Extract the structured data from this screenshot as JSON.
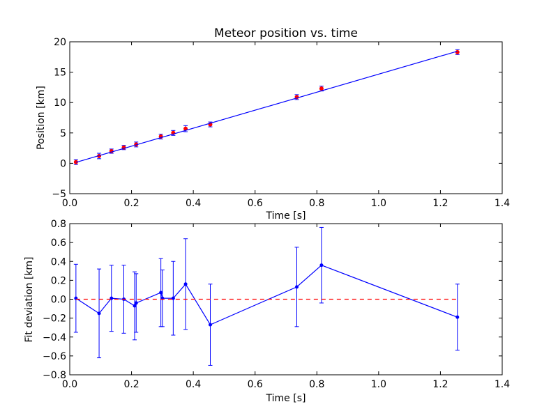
{
  "figure": {
    "background": "#ffffff"
  },
  "chart_data": [
    {
      "type": "scatter",
      "title": "Meteor position vs. time",
      "xlabel": "Time [s]",
      "ylabel": "Position [km]",
      "xlim": [
        0.0,
        1.4
      ],
      "ylim": [
        -5,
        20
      ],
      "xticks": [
        0.0,
        0.2,
        0.4,
        0.6,
        0.8,
        1.0,
        1.2,
        1.4
      ],
      "xtick_labels": [
        "0.0",
        "0.2",
        "0.4",
        "0.6",
        "0.8",
        "1.0",
        "1.2",
        "1.4"
      ],
      "yticks": [
        -5,
        0,
        5,
        10,
        15,
        20
      ],
      "ytick_labels": [
        "−5",
        "0",
        "5",
        "10",
        "15",
        "20"
      ],
      "grid": false,
      "series": [
        {
          "kind": "errorbar-points",
          "color": "#ff0000",
          "errcolor": "#0000ff",
          "x": [
            0.02,
            0.095,
            0.135,
            0.175,
            0.215,
            0.295,
            0.335,
            0.375,
            0.455,
            0.735,
            0.815,
            1.255
          ],
          "y": [
            0.2,
            1.2,
            2.0,
            2.6,
            3.1,
            4.4,
            5.0,
            5.7,
            6.4,
            10.9,
            12.3,
            18.3
          ],
          "yerr": [
            0.4,
            0.45,
            0.35,
            0.35,
            0.4,
            0.4,
            0.4,
            0.5,
            0.4,
            0.4,
            0.4,
            0.4
          ]
        },
        {
          "kind": "line",
          "color": "#0000ff",
          "x": [
            0.02,
            1.255
          ],
          "y": [
            0.15,
            18.45
          ]
        }
      ]
    },
    {
      "type": "line",
      "title": "",
      "xlabel": "Time [s]",
      "ylabel": "Fit deviation [km]",
      "xlim": [
        0.0,
        1.4
      ],
      "ylim": [
        -0.8,
        0.8
      ],
      "xticks": [
        0.0,
        0.2,
        0.4,
        0.6,
        0.8,
        1.0,
        1.2,
        1.4
      ],
      "xtick_labels": [
        "0.0",
        "0.2",
        "0.4",
        "0.6",
        "0.8",
        "1.0",
        "1.2",
        "1.4"
      ],
      "yticks": [
        -0.8,
        -0.6,
        -0.4,
        -0.2,
        0.0,
        0.2,
        0.4,
        0.6,
        0.8
      ],
      "ytick_labels": [
        "−0.8",
        "−0.6",
        "−0.4",
        "−0.2",
        "0.0",
        "0.2",
        "0.4",
        "0.6",
        "0.8"
      ],
      "grid": false,
      "series": [
        {
          "kind": "line-errorbar",
          "color": "#0000ff",
          "x": [
            0.02,
            0.095,
            0.135,
            0.175,
            0.21,
            0.215,
            0.295,
            0.3,
            0.335,
            0.375,
            0.455,
            0.735,
            0.815,
            1.255
          ],
          "y": [
            0.01,
            -0.15,
            0.01,
            0.0,
            -0.07,
            -0.04,
            0.07,
            0.01,
            0.01,
            0.16,
            -0.27,
            0.13,
            0.36,
            -0.19
          ],
          "yerr": [
            0.36,
            0.47,
            0.35,
            0.36,
            0.36,
            0.31,
            0.36,
            0.3,
            0.39,
            0.48,
            0.43,
            0.42,
            0.4,
            0.35
          ]
        },
        {
          "kind": "dashed-line",
          "color": "#ff0000",
          "x": [
            0.02,
            1.255
          ],
          "y": [
            0.0,
            0.0
          ]
        }
      ]
    }
  ]
}
